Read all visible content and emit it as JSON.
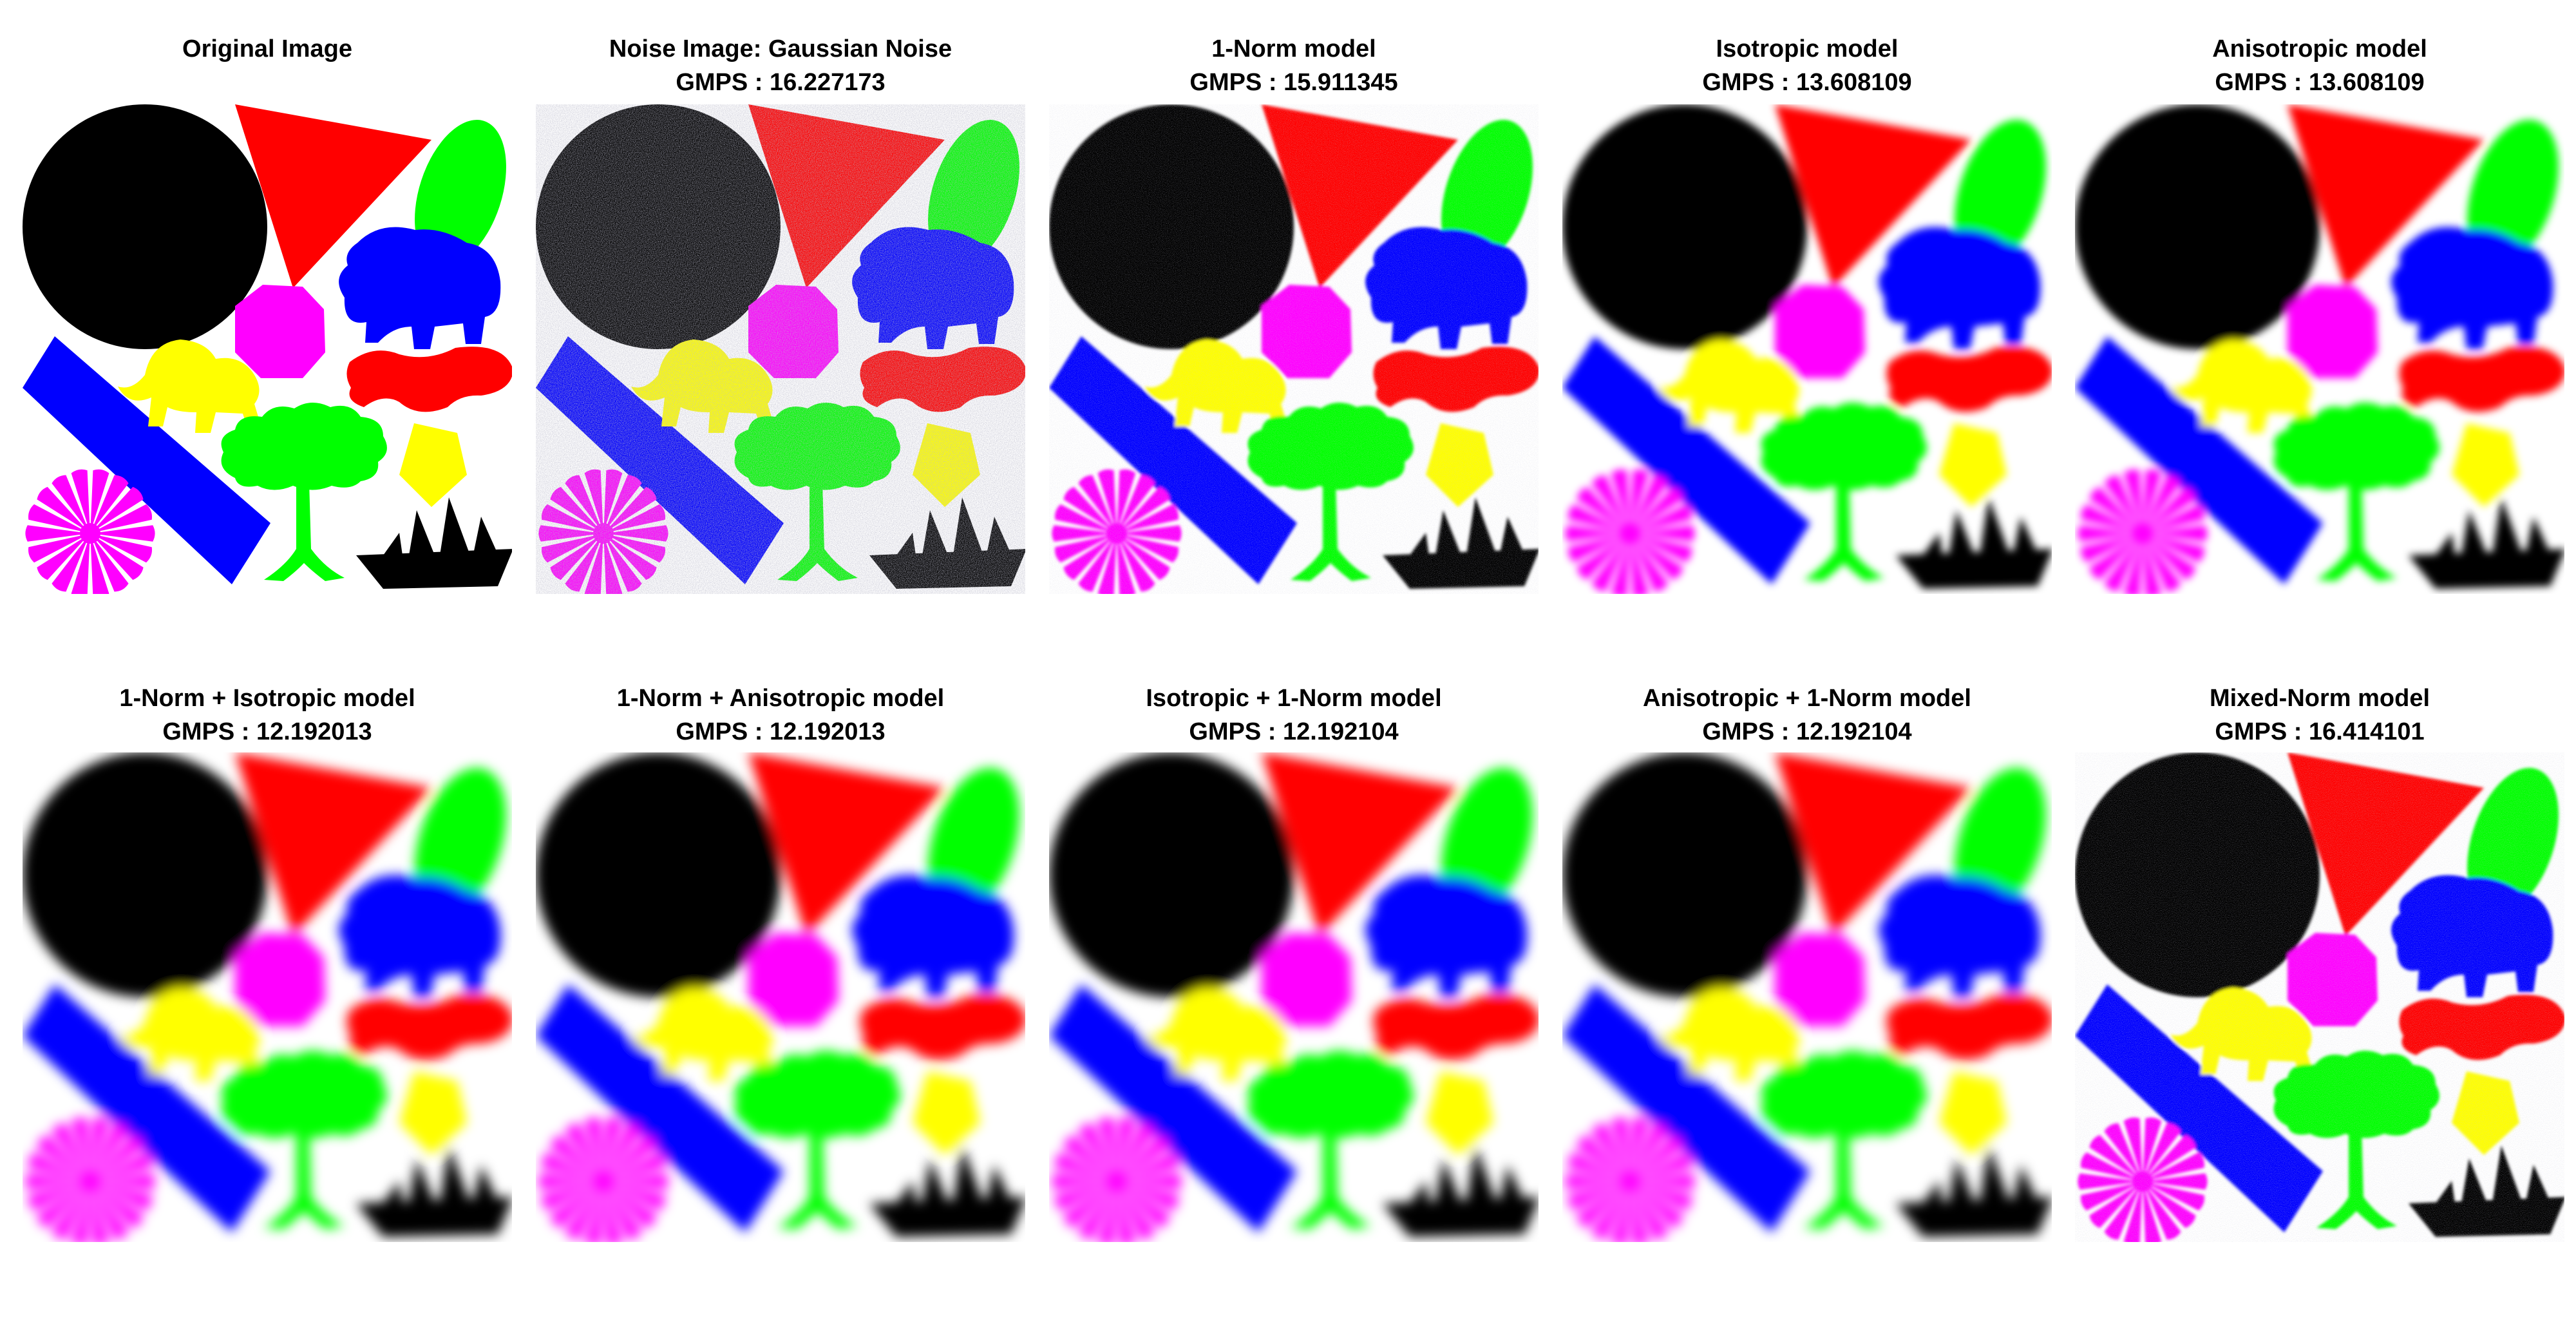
{
  "figure": {
    "panels": [
      {
        "title": "Original Image",
        "metric": "",
        "style": "clean"
      },
      {
        "title": "Noise Image: Gaussian Noise",
        "metric": "GMPS : 16.227173",
        "style": "noisy"
      },
      {
        "title": "1-Norm model",
        "metric": "GMPS : 15.911345",
        "style": "mild"
      },
      {
        "title": "Isotropic model",
        "metric": "GMPS : 13.608109",
        "style": "blur"
      },
      {
        "title": "Anisotropic model",
        "metric": "GMPS : 13.608109",
        "style": "blur"
      },
      {
        "title": "1-Norm + Isotropic model",
        "metric": "GMPS : 12.192013",
        "style": "heavy"
      },
      {
        "title": "1-Norm + Anisotropic model",
        "metric": "GMPS : 12.192013",
        "style": "heavy"
      },
      {
        "title": "Isotropic + 1-Norm model",
        "metric": "GMPS : 12.192104",
        "style": "heavy"
      },
      {
        "title": "Anisotropic + 1-Norm model",
        "metric": "GMPS : 12.192104",
        "style": "heavy"
      },
      {
        "title": "Mixed-Norm model",
        "metric": "GMPS : 16.414101",
        "style": "mild"
      }
    ]
  },
  "colors": {
    "black": "#000000",
    "red": "#ff0000",
    "green": "#00ff00",
    "blue": "#0000ff",
    "magenta": "#ff00ff",
    "yellow": "#ffff00",
    "background": "#ffffff"
  },
  "shapes": [
    "circle",
    "triangle",
    "ellipse",
    "elephant",
    "octagon",
    "rectangle",
    "lion",
    "bone",
    "tree",
    "pentagon",
    "flower",
    "ship"
  ]
}
